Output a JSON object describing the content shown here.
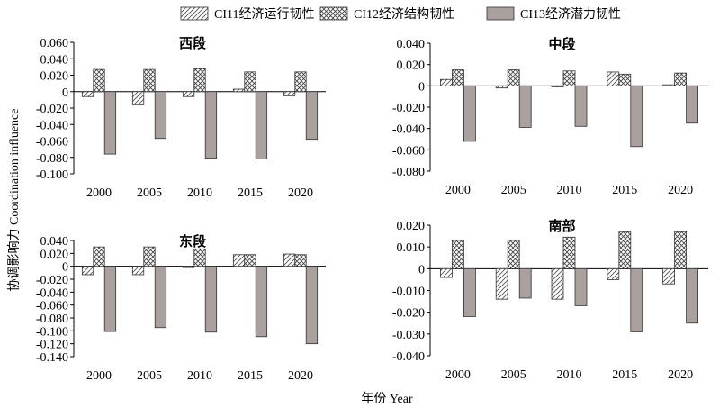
{
  "legend": [
    {
      "label": "CI11经济运行韧性",
      "pattern": "hatch"
    },
    {
      "label": "CI12经济结构韧性",
      "pattern": "crosshatch"
    },
    {
      "label": "CI13经济潜力韧性",
      "pattern": "solid",
      "color": "#aaa09e"
    }
  ],
  "ylabel": "协调影响力 Coordination influence",
  "xlabel": "年份 Year",
  "chart_data": [
    {
      "type": "bar",
      "title": "西段",
      "categories": [
        "2000",
        "2005",
        "2010",
        "2015",
        "2020"
      ],
      "ylim": [
        -0.1,
        0.06
      ],
      "yticks": [
        0.06,
        0.04,
        0.02,
        0,
        -0.02,
        -0.04,
        -0.06,
        -0.08,
        -0.1
      ],
      "yticklabels": [
        "0.060",
        "0.040",
        "0.020",
        "0",
        "-0.020",
        "-0.040",
        "-0.060",
        "-0.080",
        "-0.100"
      ],
      "series": [
        {
          "name": "CI11经济运行韧性",
          "values": [
            -0.006,
            -0.016,
            -0.006,
            0.003,
            -0.005
          ]
        },
        {
          "name": "CI12经济结构韧性",
          "values": [
            0.027,
            0.027,
            0.028,
            0.024,
            0.024
          ]
        },
        {
          "name": "CI13经济潜力韧性",
          "values": [
            -0.076,
            -0.057,
            -0.081,
            -0.082,
            -0.058
          ]
        }
      ]
    },
    {
      "type": "bar",
      "title": "中段",
      "categories": [
        "2000",
        "2005",
        "2010",
        "2015",
        "2020"
      ],
      "ylim": [
        -0.08,
        0.04
      ],
      "yticks": [
        0.04,
        0.02,
        0,
        -0.02,
        -0.04,
        -0.06,
        -0.08
      ],
      "yticklabels": [
        "0.040",
        "0.020",
        "0",
        "-0.020",
        "-0.040",
        "-0.060",
        "-0.080"
      ],
      "series": [
        {
          "name": "CI11经济运行韧性",
          "values": [
            0.006,
            -0.002,
            -0.001,
            0.013,
            0.001
          ]
        },
        {
          "name": "CI12经济结构韧性",
          "values": [
            0.015,
            0.015,
            0.014,
            0.011,
            0.012
          ]
        },
        {
          "name": "CI13经济潜力韧性",
          "values": [
            -0.052,
            -0.039,
            -0.038,
            -0.057,
            -0.035
          ]
        }
      ]
    },
    {
      "type": "bar",
      "title": "东段",
      "categories": [
        "2000",
        "2005",
        "2010",
        "2015",
        "2020"
      ],
      "ylim": [
        -0.14,
        0.04
      ],
      "yticks": [
        0.04,
        0.02,
        0,
        -0.02,
        -0.04,
        -0.06,
        -0.08,
        -0.1,
        -0.12,
        -0.14
      ],
      "yticklabels": [
        "0.040",
        "0.020",
        "0",
        "-0.020",
        "-0.040",
        "-0.060",
        "-0.080",
        "-0.100",
        "-0.120",
        "-0.140"
      ],
      "series": [
        {
          "name": "CI11经济运行韧性",
          "values": [
            -0.013,
            -0.013,
            -0.002,
            0.018,
            0.019
          ]
        },
        {
          "name": "CI12经济结构韧性",
          "values": [
            0.03,
            0.03,
            0.027,
            0.018,
            0.018
          ]
        },
        {
          "name": "CI13经济潜力韧性",
          "values": [
            -0.101,
            -0.095,
            -0.102,
            -0.109,
            -0.12
          ]
        }
      ]
    },
    {
      "type": "bar",
      "title": "南部",
      "categories": [
        "2000",
        "2005",
        "2010",
        "2015",
        "2020"
      ],
      "ylim": [
        -0.04,
        0.02
      ],
      "yticks": [
        0.02,
        0.01,
        0,
        -0.01,
        -0.02,
        -0.03,
        -0.04
      ],
      "yticklabels": [
        "0.020",
        "0.010",
        "0",
        "-0.010",
        "-0.020",
        "-0.030",
        "-0.040"
      ],
      "series": [
        {
          "name": "CI11经济运行韧性",
          "values": [
            -0.004,
            -0.014,
            -0.014,
            -0.005,
            -0.007
          ]
        },
        {
          "name": "CI12经济结构韧性",
          "values": [
            0.013,
            0.013,
            0.0145,
            0.017,
            0.017
          ]
        },
        {
          "name": "CI13经济潜力韧性",
          "values": [
            -0.022,
            -0.0135,
            -0.017,
            -0.029,
            -0.025
          ]
        }
      ]
    }
  ]
}
